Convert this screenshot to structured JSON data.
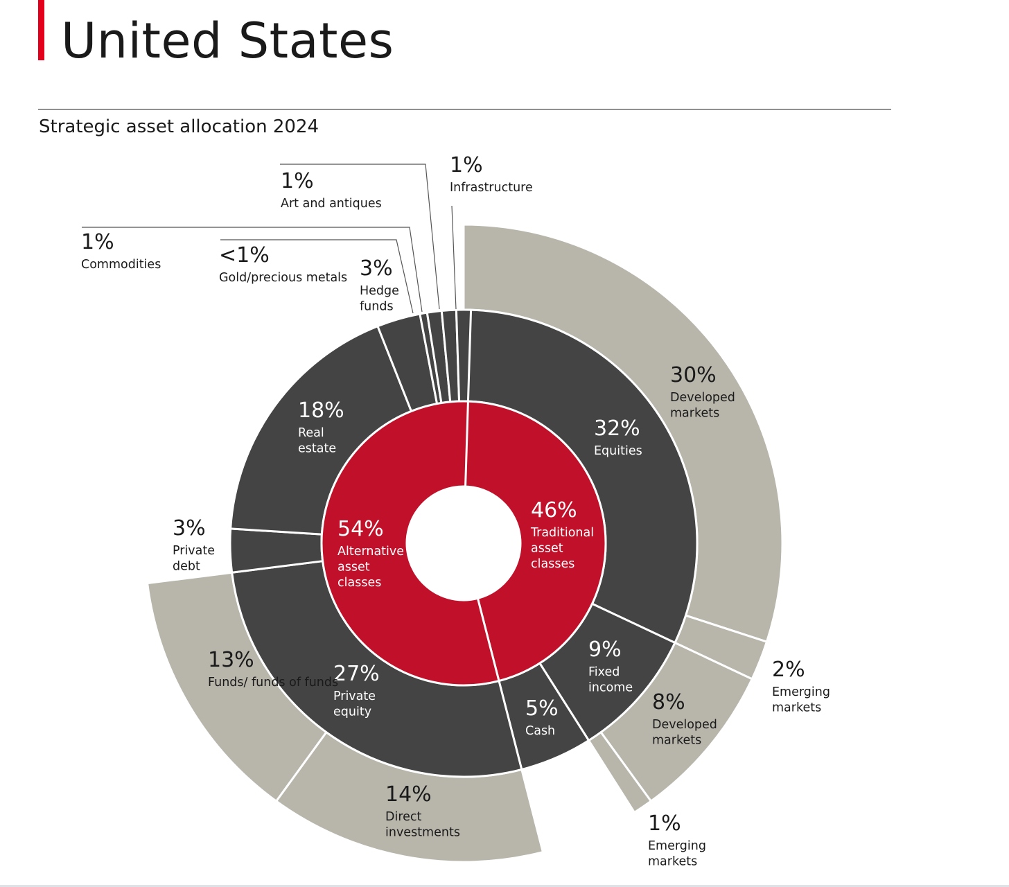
{
  "page": {
    "title": "United States",
    "subtitle": "Strategic asset allocation 2024"
  },
  "colors": {
    "accent": "#e3001b",
    "inner_ring": "#c0102a",
    "middle_ring": "#444444",
    "outer_ring": "#b8b5ab",
    "separator": "#ffffff",
    "dark_text": "#1a1a1a",
    "light_text": "#ffffff"
  },
  "chart_data": {
    "type": "sunburst",
    "title": "Strategic asset allocation 2024",
    "rings": [
      {
        "level": "inner",
        "segments": [
          {
            "id": "traditional",
            "value_label": "46%",
            "label": "Traditional asset classes",
            "value": 46
          },
          {
            "id": "alternative",
            "value_label": "54%",
            "label": "Alternative asset classes",
            "value": 54
          }
        ]
      },
      {
        "level": "middle",
        "segments": [
          {
            "id": "equities",
            "parent": "traditional",
            "value_label": "32%",
            "label": "Equities",
            "value": 32
          },
          {
            "id": "fixed-income",
            "parent": "traditional",
            "value_label": "9%",
            "label": "Fixed income",
            "value": 9
          },
          {
            "id": "cash",
            "parent": "traditional",
            "value_label": "5%",
            "label": "Cash",
            "value": 5
          },
          {
            "id": "private-equity",
            "parent": "alternative",
            "value_label": "27%",
            "label": "Private equity",
            "value": 27
          },
          {
            "id": "private-debt",
            "parent": "alternative",
            "value_label": "3%",
            "label": "Private debt",
            "value": 3
          },
          {
            "id": "real-estate",
            "parent": "alternative",
            "value_label": "18%",
            "label": "Real estate",
            "value": 18
          },
          {
            "id": "hedge-funds",
            "parent": "alternative",
            "value_label": "3%",
            "label": "Hedge funds",
            "value": 3
          },
          {
            "id": "gold",
            "parent": "alternative",
            "value_label": "<1%",
            "label": "Gold/precious metals",
            "value": 0.5
          },
          {
            "id": "commodities",
            "parent": "alternative",
            "value_label": "1%",
            "label": "Commodities",
            "value": 1
          },
          {
            "id": "art",
            "parent": "alternative",
            "value_label": "1%",
            "label": "Art and antiques",
            "value": 1
          },
          {
            "id": "infrastructure",
            "parent": "alternative",
            "value_label": "1%",
            "label": "Infrastructure",
            "value": 1
          }
        ]
      },
      {
        "level": "outer",
        "segments": [
          {
            "id": "eq-developed",
            "parent": "equities",
            "value_label": "30%",
            "label": "Developed markets",
            "value": 30
          },
          {
            "id": "eq-emerging",
            "parent": "equities",
            "value_label": "2%",
            "label": "Emerging markets",
            "value": 2
          },
          {
            "id": "fi-developed",
            "parent": "fixed-income",
            "value_label": "8%",
            "label": "Developed markets",
            "value": 8
          },
          {
            "id": "fi-emerging",
            "parent": "fixed-income",
            "value_label": "1%",
            "label": "Emerging markets",
            "value": 1
          },
          {
            "id": "pe-direct",
            "parent": "private-equity",
            "value_label": "14%",
            "label": "Direct investments",
            "value": 14
          },
          {
            "id": "pe-funds",
            "parent": "private-equity",
            "value_label": "13%",
            "label": "Funds/ funds of funds",
            "value": 13
          }
        ]
      }
    ]
  }
}
